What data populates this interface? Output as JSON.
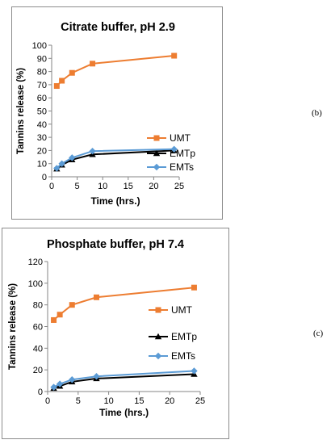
{
  "side_labels": {
    "b": "(b)",
    "c": "(c)"
  },
  "colors": {
    "UMT": "#ED7D31",
    "EMTp": "#000000",
    "EMTs": "#5B9BD5"
  },
  "chart_data": [
    {
      "type": "line",
      "title": "Citrate buffer, pH 2.9",
      "xlabel": "Time (hrs.)",
      "ylabel": "Tannins release (%)",
      "xlim": [
        0,
        25
      ],
      "ylim": [
        0,
        100
      ],
      "xticks": [
        0,
        5,
        10,
        15,
        20,
        25
      ],
      "yticks": [
        0,
        10,
        20,
        30,
        40,
        50,
        60,
        70,
        80,
        90,
        100
      ],
      "grid": false,
      "legend": "right",
      "series": [
        {
          "name": "UMT",
          "marker": "square",
          "color": "#ED7D31",
          "points": [
            [
              1,
              69
            ],
            [
              2,
              73
            ],
            [
              4,
              79
            ],
            [
              8,
              86
            ],
            [
              24,
              92
            ]
          ]
        },
        {
          "name": "EMTp",
          "marker": "triangle",
          "color": "#000000",
          "points": [
            [
              1,
              6
            ],
            [
              2,
              9
            ],
            [
              4,
              13
            ],
            [
              8,
              17
            ],
            [
              24,
              20
            ]
          ]
        },
        {
          "name": "EMTs",
          "marker": "diamond",
          "color": "#5B9BD5",
          "points": [
            [
              1,
              6.5
            ],
            [
              2,
              10
            ],
            [
              4,
              14.5
            ],
            [
              8,
              19.5
            ],
            [
              24,
              21
            ]
          ]
        }
      ]
    },
    {
      "type": "line",
      "title": "Phosphate buffer, pH 7.4",
      "xlabel": "Time (hrs.)",
      "ylabel": "Tannins release (%)",
      "xlim": [
        0,
        25
      ],
      "ylim": [
        0,
        120
      ],
      "xticks": [
        0,
        5,
        10,
        15,
        20,
        25
      ],
      "yticks": [
        0,
        20,
        40,
        60,
        80,
        100,
        120
      ],
      "grid": false,
      "legend": "right",
      "series": [
        {
          "name": "UMT",
          "marker": "square",
          "color": "#ED7D31",
          "points": [
            [
              1,
              66
            ],
            [
              2,
              71
            ],
            [
              4,
              80
            ],
            [
              8,
              87
            ],
            [
              24,
              96
            ]
          ]
        },
        {
          "name": "EMTp",
          "marker": "triangle",
          "color": "#000000",
          "points": [
            [
              1,
              3
            ],
            [
              2,
              5
            ],
            [
              4,
              9
            ],
            [
              8,
              12
            ],
            [
              24,
              16
            ]
          ]
        },
        {
          "name": "EMTs",
          "marker": "diamond",
          "color": "#5B9BD5",
          "points": [
            [
              1,
              4
            ],
            [
              2,
              7
            ],
            [
              4,
              11
            ],
            [
              8,
              14
            ],
            [
              24,
              19
            ]
          ]
        }
      ]
    }
  ]
}
